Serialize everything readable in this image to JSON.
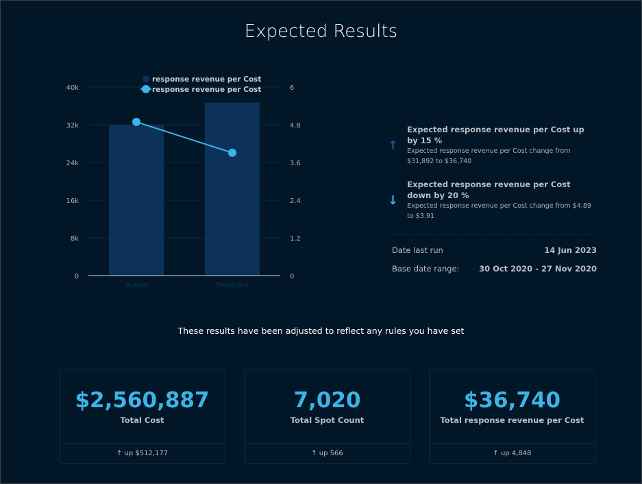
{
  "title": "Expected Results",
  "colors": {
    "bar": "#0c3259",
    "line": "#3bb5e8",
    "background": "#011627"
  },
  "chart_data": {
    "type": "bar+line",
    "categories": [
      "Actual",
      "Predicted"
    ],
    "series": [
      {
        "name": "response revenue per Cost",
        "type": "bar",
        "axis": "left",
        "values": [
          31892,
          36740
        ]
      },
      {
        "name": "response revenue per Cost",
        "type": "line",
        "axis": "right",
        "values": [
          4.89,
          3.91
        ]
      }
    ],
    "left_axis": {
      "ylim": [
        0,
        40000
      ],
      "ticks": [
        "0",
        "8k",
        "16k",
        "24k",
        "32k",
        "40k"
      ]
    },
    "right_axis": {
      "ylim": [
        0,
        6
      ],
      "ticks": [
        "0",
        "1.2",
        "2.4",
        "3.6",
        "4.8",
        "6"
      ]
    },
    "grid": true,
    "legend": "top"
  },
  "insights": [
    {
      "icon": "arrow-up-icon",
      "title": "Expected response revenue per Cost up by 15 %",
      "detail": "Expected response revenue per Cost change from $31,892 to $36,740"
    },
    {
      "icon": "arrow-down-icon",
      "title": "Expected response revenue per Cost down by 20 %",
      "detail": "Expected response revenue per Cost change from $4.89 to $3.91"
    }
  ],
  "meta": {
    "last_run_label": "Date last run",
    "last_run": "14 Jun 2023",
    "range_label": "Base date range:",
    "range": "30 Oct 2020 - 27 Nov 2020"
  },
  "note": "These results have been adjusted to reflect any rules you have set",
  "cards": [
    {
      "value": "$2,560,887",
      "label": "Total Cost",
      "change": "↑ up $512,177"
    },
    {
      "value": "7,020",
      "label": "Total Spot Count",
      "change": "↑ up 566"
    },
    {
      "value": "$36,740",
      "label": "Total response revenue per Cost",
      "change": "↑ up 4,848"
    }
  ]
}
